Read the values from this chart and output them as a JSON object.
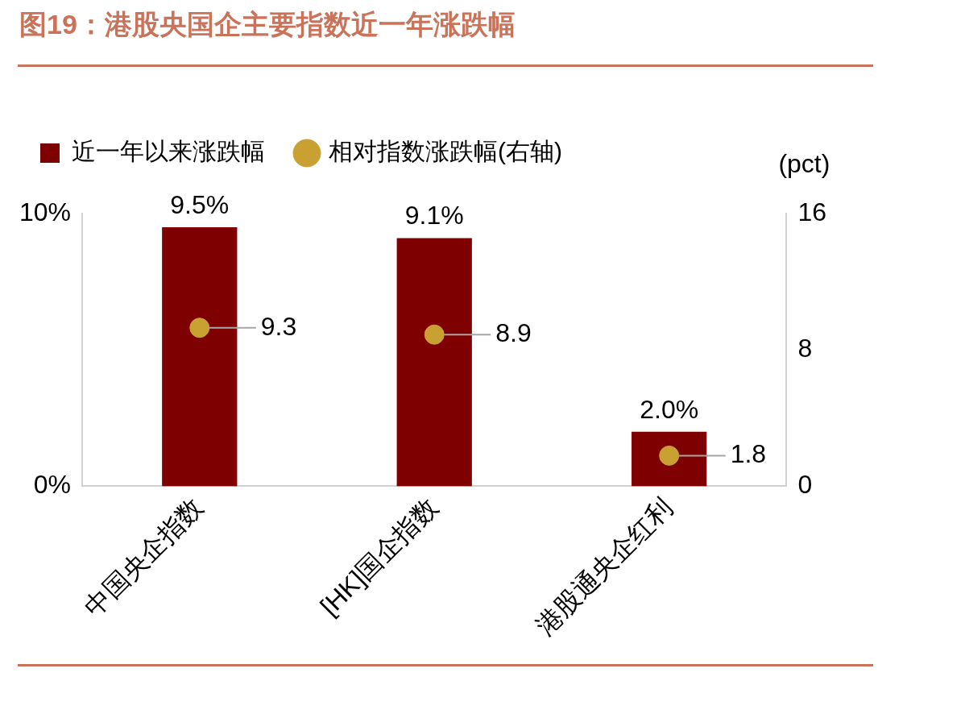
{
  "chart_data": {
    "type": "bar",
    "title": "图19：港股央国企主要指数近一年涨跌幅",
    "categories": [
      "中国央企指数",
      "[HK]国企指数",
      "港股通央企红利"
    ],
    "series": [
      {
        "name": "近一年以来涨跌幅",
        "color": "#7f0000",
        "values": [
          9.5,
          9.1,
          2.0
        ],
        "value_labels": [
          "9.5%",
          "9.1%",
          "2.0%"
        ]
      },
      {
        "name": "相对指数涨跌幅(右轴)",
        "type": "scatter",
        "axis": "y2",
        "color": "#c9a032",
        "x": [
          "中国央企指数",
          "[HK]国企指数",
          "港股通央企红利"
        ],
        "values": [
          9.3,
          8.9,
          1.8
        ],
        "value_labels": [
          "9.3",
          "8.9",
          "1.8"
        ]
      }
    ],
    "ylim": [
      0,
      10
    ],
    "yticks": [
      {
        "value": 0,
        "label": "0%"
      },
      {
        "value": 10,
        "label": "10%"
      }
    ],
    "y2lim": [
      0,
      16
    ],
    "y2ticks": [
      0,
      8,
      16
    ],
    "y2label": "(pct)",
    "legend": "top left",
    "grid": false,
    "marker": "circle"
  }
}
